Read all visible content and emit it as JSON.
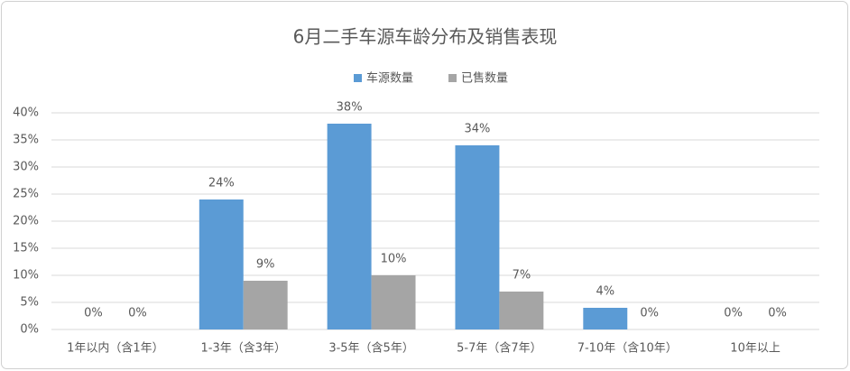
{
  "chart_data": {
    "type": "bar",
    "title": "6月二手车源车龄分布及销售表现",
    "categories": [
      "1年以内（含1年）",
      "1-3年（含3年）",
      "3-5年（含5年）",
      "5-7年（含7年）",
      "7-10年（含10年）",
      "10年以上"
    ],
    "series": [
      {
        "name": "车源数量",
        "color": "#5b9bd5",
        "values": [
          0,
          24,
          38,
          34,
          4,
          0
        ],
        "value_labels": [
          "0%",
          "24%",
          "38%",
          "34%",
          "4%",
          "0%"
        ]
      },
      {
        "name": "已售数量",
        "color": "#a5a5a5",
        "values": [
          0,
          9,
          10,
          7,
          0,
          0
        ],
        "value_labels": [
          "0%",
          "9%",
          "10%",
          "7%",
          "0%",
          "0%"
        ]
      }
    ],
    "ylim": [
      0,
      40
    ],
    "yticks": [
      {
        "value": 0,
        "label": "0%"
      },
      {
        "value": 5,
        "label": "5%"
      },
      {
        "value": 10,
        "label": "10%"
      },
      {
        "value": 15,
        "label": "15%"
      },
      {
        "value": 20,
        "label": "20%"
      },
      {
        "value": 25,
        "label": "25%"
      },
      {
        "value": 30,
        "label": "30%"
      },
      {
        "value": 35,
        "label": "35%"
      },
      {
        "value": 40,
        "label": "40%"
      }
    ],
    "grid": true,
    "legend": "top"
  }
}
